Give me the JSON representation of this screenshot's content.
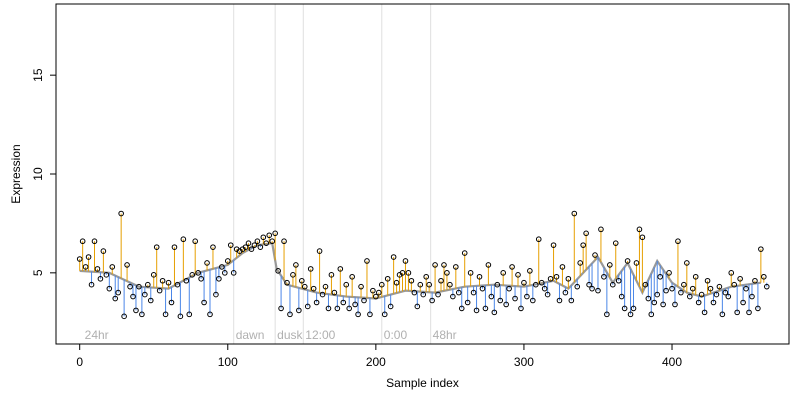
{
  "chart_data": {
    "type": "scatter",
    "title": "",
    "xlabel": "Sample index",
    "ylabel": "Expression",
    "xlim": [
      -16,
      479
    ],
    "ylim": [
      1.4,
      18.6
    ],
    "x_ticks": [
      0,
      100,
      200,
      300,
      400
    ],
    "y_ticks": [
      5,
      10,
      15
    ],
    "grid": false,
    "legend": "none",
    "colors": {
      "above_fit": "#e69f00",
      "below_fit": "#4a86e8",
      "fit_line": "#999999",
      "vline": "#e0e0e0",
      "point_stroke": "#000000",
      "annotation": "#b0b0b0"
    },
    "annotations": [
      {
        "x": 2,
        "label": "24hr"
      },
      {
        "x": 104,
        "label": "dawn"
      },
      {
        "x": 132,
        "label": "dusk"
      },
      {
        "x": 151,
        "label": "12:00"
      },
      {
        "x": 204,
        "label": "0:00"
      },
      {
        "x": 237,
        "label": "48hr"
      }
    ],
    "vlines": [
      104,
      132,
      151,
      204,
      237
    ],
    "fit": [
      [
        0,
        5.1
      ],
      [
        20,
        5.0
      ],
      [
        40,
        4.3
      ],
      [
        60,
        4.2
      ],
      [
        80,
        5.0
      ],
      [
        100,
        5.4
      ],
      [
        110,
        6.0
      ],
      [
        120,
        6.4
      ],
      [
        130,
        6.5
      ],
      [
        133,
        5.2
      ],
      [
        140,
        4.4
      ],
      [
        160,
        4.0
      ],
      [
        180,
        3.8
      ],
      [
        200,
        3.7
      ],
      [
        220,
        4.1
      ],
      [
        240,
        4.0
      ],
      [
        260,
        4.3
      ],
      [
        280,
        4.4
      ],
      [
        300,
        4.3
      ],
      [
        320,
        4.6
      ],
      [
        330,
        4.2
      ],
      [
        340,
        5.0
      ],
      [
        350,
        5.8
      ],
      [
        360,
        4.5
      ],
      [
        370,
        5.5
      ],
      [
        380,
        4.0
      ],
      [
        390,
        5.6
      ],
      [
        400,
        4.5
      ],
      [
        410,
        4.0
      ],
      [
        420,
        3.8
      ],
      [
        440,
        4.3
      ],
      [
        460,
        4.5
      ]
    ],
    "series": [
      {
        "x": [
          0,
          2,
          4,
          6,
          8,
          10,
          12,
          14,
          16,
          18,
          20,
          22,
          24,
          26,
          28,
          30,
          32,
          34,
          36,
          38,
          40,
          42,
          44,
          46,
          48,
          50,
          52,
          54,
          56,
          58,
          60,
          62,
          64,
          66,
          68,
          70,
          72,
          74,
          76,
          78,
          80,
          82,
          84,
          86,
          88,
          90,
          92,
          94,
          96,
          98,
          100,
          102,
          104,
          106,
          108,
          110,
          112,
          114,
          116,
          118,
          120,
          122,
          124,
          126,
          128,
          130,
          132,
          134,
          136,
          138,
          140,
          142,
          144,
          146,
          148,
          150,
          152,
          154,
          156,
          158,
          160,
          162,
          164,
          166,
          168,
          170,
          172,
          174,
          176,
          178,
          180,
          182,
          184,
          186,
          188,
          190,
          192,
          194,
          196,
          198,
          200,
          202,
          204,
          206,
          208,
          210,
          212,
          214,
          216,
          218,
          220,
          222,
          224,
          226,
          228,
          230,
          232,
          234,
          236,
          238,
          240,
          242,
          244,
          246,
          248,
          250,
          252,
          254,
          256,
          258,
          260,
          262,
          264,
          266,
          268,
          270,
          272,
          274,
          276,
          278,
          280,
          282,
          284,
          286,
          288,
          290,
          292,
          294,
          296,
          298,
          300,
          302,
          304,
          306,
          308,
          310,
          312,
          314,
          316,
          318,
          320,
          322,
          324,
          326,
          328,
          330,
          332,
          334,
          336,
          338,
          340,
          342,
          344,
          346,
          348,
          350,
          352,
          354,
          356,
          358,
          360,
          362,
          364,
          366,
          368,
          370,
          372,
          374,
          376,
          378,
          380,
          382,
          384,
          386,
          388,
          390,
          392,
          394,
          396,
          398,
          400,
          402,
          404,
          406,
          408,
          410,
          412,
          414,
          416,
          418,
          420,
          422,
          424,
          426,
          428,
          430,
          432,
          434,
          436,
          438,
          440,
          442,
          444,
          446,
          448,
          450,
          452,
          454,
          456,
          458,
          460,
          462,
          464
        ],
        "y": [
          5.7,
          6.6,
          5.3,
          5.8,
          4.4,
          6.6,
          5.2,
          4.7,
          6.1,
          4.9,
          4.2,
          5.3,
          3.7,
          4.0,
          8.0,
          2.8,
          5.4,
          4.3,
          3.8,
          3.1,
          4.3,
          2.9,
          3.9,
          4.4,
          3.6,
          4.9,
          6.3,
          4.1,
          4.6,
          2.9,
          4.5,
          3.5,
          6.3,
          4.4,
          2.8,
          6.7,
          4.6,
          2.9,
          4.9,
          6.6,
          5.0,
          4.7,
          3.5,
          5.5,
          2.9,
          6.3,
          3.9,
          4.7,
          5.3,
          5.0,
          5.6,
          6.4,
          5.0,
          6.2,
          6.1,
          6.2,
          6.3,
          6.5,
          6.2,
          6.4,
          6.6,
          6.3,
          6.8,
          6.5,
          6.9,
          6.6,
          7.0,
          5.1,
          3.2,
          6.6,
          4.5,
          2.9,
          4.9,
          5.4,
          3.1,
          4.6,
          4.3,
          3.3,
          5.2,
          4.2,
          3.5,
          6.1,
          3.9,
          4.3,
          3.2,
          4.9,
          4.0,
          3.2,
          5.2,
          3.5,
          4.4,
          3.2,
          4.8,
          3.4,
          2.9,
          4.3,
          3.6,
          5.6,
          2.9,
          4.1,
          3.8,
          4.0,
          4.4,
          2.9,
          4.7,
          3.3,
          5.8,
          4.5,
          4.9,
          5.0,
          5.6,
          5.0,
          4.6,
          4.0,
          3.3,
          4.4,
          3.9,
          4.8,
          4.4,
          3.6,
          5.4,
          3.9,
          4.6,
          5.4,
          5.0,
          4.4,
          3.8,
          5.3,
          4.0,
          3.2,
          6.0,
          3.5,
          5.0,
          4.0,
          3.1,
          4.8,
          4.2,
          3.2,
          5.4,
          3.8,
          3.0,
          4.4,
          3.6,
          5.0,
          3.4,
          4.2,
          5.3,
          3.7,
          4.9,
          3.2,
          4.5,
          3.8,
          5.1,
          3.6,
          4.4,
          6.7,
          4.5,
          4.2,
          3.9,
          4.7,
          6.4,
          4.8,
          3.6,
          5.3,
          4.0,
          4.7,
          3.6,
          8.0,
          4.3,
          5.5,
          6.4,
          7.0,
          4.4,
          4.2,
          5.9,
          4.1,
          7.2,
          4.8,
          2.9,
          5.4,
          4.4,
          6.5,
          4.6,
          3.8,
          3.2,
          5.6,
          2.9,
          3.2,
          5.5,
          7.2,
          6.8,
          4.4,
          3.7,
          2.9,
          3.5,
          3.9,
          4.8,
          3.4,
          4.1,
          5.0,
          4.2,
          3.4,
          6.6,
          4.0,
          4.4,
          5.5,
          3.8,
          4.2,
          4.8,
          3.5,
          3.9,
          3.0,
          4.6,
          4.2,
          3.5,
          3.9,
          4.3,
          2.9,
          4.0,
          3.8,
          5.0,
          4.4,
          3.0,
          4.7,
          3.5,
          4.2,
          3.0,
          3.8,
          4.6,
          3.2,
          6.2,
          4.8,
          4.3
        ]
      }
    ]
  }
}
